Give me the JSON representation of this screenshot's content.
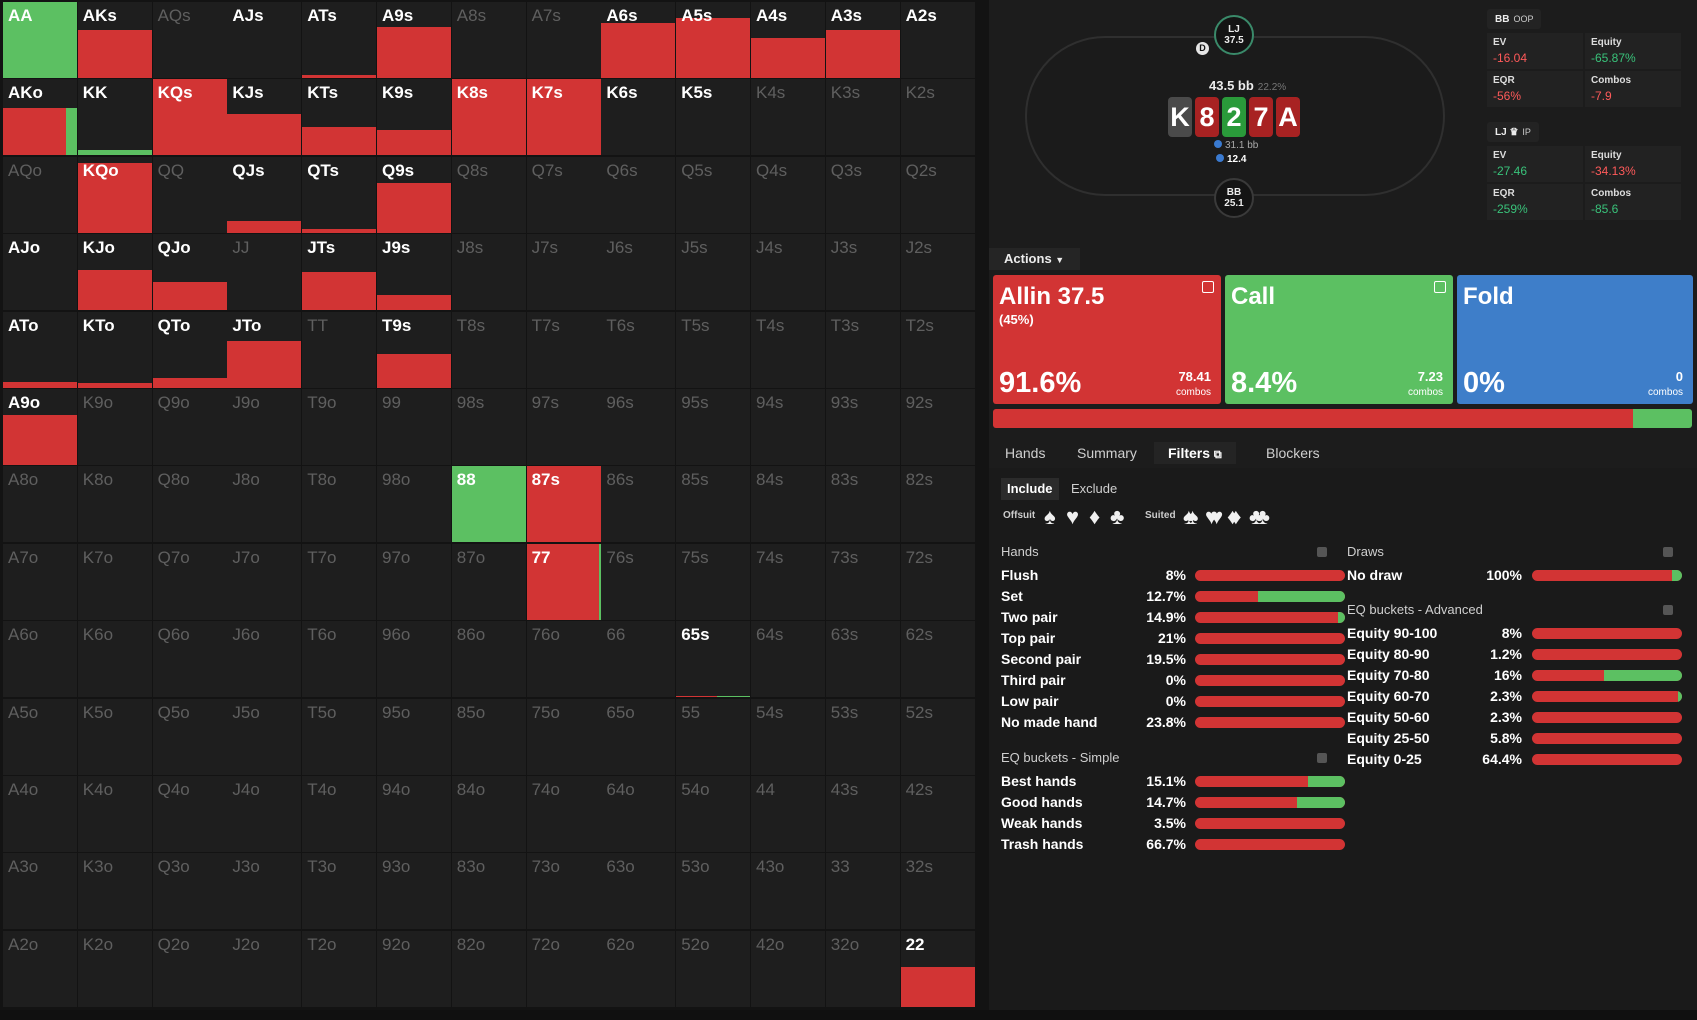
{
  "colors": {
    "allin": "#d23434",
    "call": "#5cc062",
    "fold": "#3e7ec9",
    "cell_bg": "#1e1e1e"
  },
  "grid": {
    "cells": [
      [
        {
          "label": "AA",
          "active": true,
          "allin": 0,
          "call": 1
        },
        {
          "label": "AKs",
          "active": true,
          "allin": 0.63,
          "call": 0
        },
        {
          "label": "AQs",
          "active": false
        },
        {
          "label": "AJs",
          "active": true,
          "allin": 0,
          "call": 0
        },
        {
          "label": "ATs",
          "active": true,
          "allin": 0.04,
          "call": 0
        },
        {
          "label": "A9s",
          "active": true,
          "allin": 0.67,
          "call": 0
        },
        {
          "label": "A8s",
          "active": false
        },
        {
          "label": "A7s",
          "active": false
        },
        {
          "label": "A6s",
          "active": true,
          "allin": 0.72,
          "call": 0
        },
        {
          "label": "A5s",
          "active": true,
          "allin": 0.79,
          "call": 0
        },
        {
          "label": "A4s",
          "active": true,
          "allin": 0.53,
          "call": 0
        },
        {
          "label": "A3s",
          "active": true,
          "allin": 0.63,
          "call": 0
        },
        {
          "label": "A2s",
          "active": true,
          "allin": 0,
          "call": 0
        }
      ],
      [
        {
          "label": "AKo",
          "active": true,
          "allin": 0.62,
          "call": 0.62,
          "split": 0.85
        },
        {
          "label": "KK",
          "active": true,
          "allin": 0.07,
          "call": 0.07,
          "split": 0
        },
        {
          "label": "KQs",
          "active": true,
          "allin": 1,
          "call": 0
        },
        {
          "label": "KJs",
          "active": true,
          "allin": 0.55,
          "call": 0
        },
        {
          "label": "KTs",
          "active": true,
          "allin": 0.38,
          "call": 0
        },
        {
          "label": "K9s",
          "active": true,
          "allin": 0.33,
          "call": 0
        },
        {
          "label": "K8s",
          "active": true,
          "allin": 1,
          "call": 0
        },
        {
          "label": "K7s",
          "active": true,
          "allin": 1,
          "call": 0
        },
        {
          "label": "K6s",
          "active": true,
          "allin": 0,
          "call": 0
        },
        {
          "label": "K5s",
          "active": true,
          "allin": 0,
          "call": 0
        },
        {
          "label": "K4s",
          "active": false
        },
        {
          "label": "K3s",
          "active": false
        },
        {
          "label": "K2s",
          "active": false
        }
      ],
      [
        {
          "label": "AQo",
          "active": false
        },
        {
          "label": "KQo",
          "active": true,
          "allin": 0.92,
          "call": 0
        },
        {
          "label": "QQ",
          "active": false
        },
        {
          "label": "QJs",
          "active": true,
          "allin": 0.16,
          "call": 0
        },
        {
          "label": "QTs",
          "active": true,
          "allin": 0.05,
          "call": 0
        },
        {
          "label": "Q9s",
          "active": true,
          "allin": 0.66,
          "call": 0
        },
        {
          "label": "Q8s",
          "active": false
        },
        {
          "label": "Q7s",
          "active": false
        },
        {
          "label": "Q6s",
          "active": false
        },
        {
          "label": "Q5s",
          "active": false
        },
        {
          "label": "Q4s",
          "active": false
        },
        {
          "label": "Q3s",
          "active": false
        },
        {
          "label": "Q2s",
          "active": false
        }
      ],
      [
        {
          "label": "AJo",
          "active": true,
          "allin": 0,
          "call": 0
        },
        {
          "label": "KJo",
          "active": true,
          "allin": 0.53,
          "call": 0
        },
        {
          "label": "QJo",
          "active": true,
          "allin": 0.37,
          "call": 0
        },
        {
          "label": "JJ",
          "active": false
        },
        {
          "label": "JTs",
          "active": true,
          "allin": 0.5,
          "call": 0
        },
        {
          "label": "J9s",
          "active": true,
          "allin": 0.2,
          "call": 0
        },
        {
          "label": "J8s",
          "active": false
        },
        {
          "label": "J7s",
          "active": false
        },
        {
          "label": "J6s",
          "active": false
        },
        {
          "label": "J5s",
          "active": false
        },
        {
          "label": "J4s",
          "active": false
        },
        {
          "label": "J3s",
          "active": false
        },
        {
          "label": "J2s",
          "active": false
        }
      ],
      [
        {
          "label": "ATo",
          "active": true,
          "allin": 0.08,
          "call": 0
        },
        {
          "label": "KTo",
          "active": true,
          "allin": 0.06,
          "call": 0
        },
        {
          "label": "QTo",
          "active": true,
          "allin": 0.13,
          "call": 0
        },
        {
          "label": "JTo",
          "active": true,
          "allin": 0.61,
          "call": 0
        },
        {
          "label": "TT",
          "active": false
        },
        {
          "label": "T9s",
          "active": true,
          "allin": 0.44,
          "call": 0
        },
        {
          "label": "T8s",
          "active": false
        },
        {
          "label": "T7s",
          "active": false
        },
        {
          "label": "T6s",
          "active": false
        },
        {
          "label": "T5s",
          "active": false
        },
        {
          "label": "T4s",
          "active": false
        },
        {
          "label": "T3s",
          "active": false
        },
        {
          "label": "T2s",
          "active": false
        }
      ],
      [
        {
          "label": "A9o",
          "active": true,
          "allin": 0.66,
          "call": 0
        },
        {
          "label": "K9o",
          "active": false
        },
        {
          "label": "Q9o",
          "active": false
        },
        {
          "label": "J9o",
          "active": false
        },
        {
          "label": "T9o",
          "active": false
        },
        {
          "label": "99",
          "active": false
        },
        {
          "label": "98s",
          "active": false
        },
        {
          "label": "97s",
          "active": false
        },
        {
          "label": "96s",
          "active": false
        },
        {
          "label": "95s",
          "active": false
        },
        {
          "label": "94s",
          "active": false
        },
        {
          "label": "93s",
          "active": false
        },
        {
          "label": "92s",
          "active": false
        }
      ],
      [
        {
          "label": "A8o",
          "active": false
        },
        {
          "label": "K8o",
          "active": false
        },
        {
          "label": "Q8o",
          "active": false
        },
        {
          "label": "J8o",
          "active": false
        },
        {
          "label": "T8o",
          "active": false
        },
        {
          "label": "98o",
          "active": false
        },
        {
          "label": "88",
          "active": true,
          "allin": 0,
          "call": 1
        },
        {
          "label": "87s",
          "active": true,
          "allin": 1,
          "call": 0
        },
        {
          "label": "86s",
          "active": false
        },
        {
          "label": "85s",
          "active": false
        },
        {
          "label": "84s",
          "active": false
        },
        {
          "label": "83s",
          "active": false
        },
        {
          "label": "82s",
          "active": false
        }
      ],
      [
        {
          "label": "A7o",
          "active": false
        },
        {
          "label": "K7o",
          "active": false
        },
        {
          "label": "Q7o",
          "active": false
        },
        {
          "label": "J7o",
          "active": false
        },
        {
          "label": "T7o",
          "active": false
        },
        {
          "label": "97o",
          "active": false
        },
        {
          "label": "87o",
          "active": false
        },
        {
          "label": "77",
          "active": true,
          "allin": 1,
          "call": 1,
          "split": 0.98
        },
        {
          "label": "76s",
          "active": false
        },
        {
          "label": "75s",
          "active": false
        },
        {
          "label": "74s",
          "active": false
        },
        {
          "label": "73s",
          "active": false
        },
        {
          "label": "72s",
          "active": false
        }
      ],
      [
        {
          "label": "A6o",
          "active": false
        },
        {
          "label": "K6o",
          "active": false
        },
        {
          "label": "Q6o",
          "active": false
        },
        {
          "label": "J6o",
          "active": false
        },
        {
          "label": "T6o",
          "active": false
        },
        {
          "label": "96o",
          "active": false
        },
        {
          "label": "86o",
          "active": false
        },
        {
          "label": "76o",
          "active": false
        },
        {
          "label": "66",
          "active": false
        },
        {
          "label": "65s",
          "active": true,
          "allin": 0.02,
          "call": 0.02,
          "split": 0.55
        },
        {
          "label": "64s",
          "active": false
        },
        {
          "label": "63s",
          "active": false
        },
        {
          "label": "62s",
          "active": false
        }
      ],
      [
        {
          "label": "A5o",
          "active": false
        },
        {
          "label": "K5o",
          "active": false
        },
        {
          "label": "Q5o",
          "active": false
        },
        {
          "label": "J5o",
          "active": false
        },
        {
          "label": "T5o",
          "active": false
        },
        {
          "label": "95o",
          "active": false
        },
        {
          "label": "85o",
          "active": false
        },
        {
          "label": "75o",
          "active": false
        },
        {
          "label": "65o",
          "active": false
        },
        {
          "label": "55",
          "active": false
        },
        {
          "label": "54s",
          "active": false
        },
        {
          "label": "53s",
          "active": false
        },
        {
          "label": "52s",
          "active": false
        }
      ],
      [
        {
          "label": "A4o",
          "active": false
        },
        {
          "label": "K4o",
          "active": false
        },
        {
          "label": "Q4o",
          "active": false
        },
        {
          "label": "J4o",
          "active": false
        },
        {
          "label": "T4o",
          "active": false
        },
        {
          "label": "94o",
          "active": false
        },
        {
          "label": "84o",
          "active": false
        },
        {
          "label": "74o",
          "active": false
        },
        {
          "label": "64o",
          "active": false
        },
        {
          "label": "54o",
          "active": false
        },
        {
          "label": "44",
          "active": false
        },
        {
          "label": "43s",
          "active": false
        },
        {
          "label": "42s",
          "active": false
        }
      ],
      [
        {
          "label": "A3o",
          "active": false
        },
        {
          "label": "K3o",
          "active": false
        },
        {
          "label": "Q3o",
          "active": false
        },
        {
          "label": "J3o",
          "active": false
        },
        {
          "label": "T3o",
          "active": false
        },
        {
          "label": "93o",
          "active": false
        },
        {
          "label": "83o",
          "active": false
        },
        {
          "label": "73o",
          "active": false
        },
        {
          "label": "63o",
          "active": false
        },
        {
          "label": "53o",
          "active": false
        },
        {
          "label": "43o",
          "active": false
        },
        {
          "label": "33",
          "active": false
        },
        {
          "label": "32s",
          "active": false
        }
      ],
      [
        {
          "label": "A2o",
          "active": false
        },
        {
          "label": "K2o",
          "active": false
        },
        {
          "label": "Q2o",
          "active": false
        },
        {
          "label": "J2o",
          "active": false
        },
        {
          "label": "T2o",
          "active": false
        },
        {
          "label": "92o",
          "active": false
        },
        {
          "label": "82o",
          "active": false
        },
        {
          "label": "72o",
          "active": false
        },
        {
          "label": "62o",
          "active": false
        },
        {
          "label": "52o",
          "active": false
        },
        {
          "label": "42o",
          "active": false
        },
        {
          "label": "32o",
          "active": false
        },
        {
          "label": "22",
          "active": true,
          "allin": 0.52,
          "call": 0
        }
      ]
    ]
  },
  "table": {
    "lj_seat": {
      "name": "LJ",
      "stack": "37.5"
    },
    "bb_seat": {
      "name": "BB",
      "stack": "25.1"
    },
    "dealer": "D",
    "pot": "43.5 bb",
    "pot_pct": "22.2%",
    "board": [
      {
        "rank": "K",
        "color": "#4a4a4a"
      },
      {
        "rank": "8",
        "color": "#a82222"
      },
      {
        "rank": "2",
        "color": "#2a9a3a"
      },
      {
        "rank": "7",
        "color": "#a82222"
      },
      {
        "rank": "A",
        "color": "#a82222"
      }
    ],
    "chips_top": "31.1 bb",
    "chips_bottom": "12.4"
  },
  "stats": {
    "bb": {
      "pos": "BB",
      "role": "OOP",
      "ev_label": "EV",
      "ev": "-16.04",
      "equity_label": "Equity",
      "equity": "-65.87%",
      "eqr_label": "EQR",
      "eqr": "-56%",
      "combos_label": "Combos",
      "combos": "-7.9"
    },
    "lj": {
      "pos": "LJ ♛",
      "role": "IP",
      "ev_label": "EV",
      "ev": "-27.46",
      "equity_label": "Equity",
      "equity": "-34.13%",
      "eqr_label": "EQR",
      "eqr": "-259%",
      "combos_label": "Combos",
      "combos": "-85.6"
    }
  },
  "actions": {
    "dropdown_label": "Actions",
    "cards": [
      {
        "name": "Allin 37.5",
        "sub": "(45%)",
        "pct": "91.6%",
        "combos": "78.41",
        "combos_label": "combos",
        "color": "#d23434"
      },
      {
        "name": "Call",
        "sub": "",
        "pct": "8.4%",
        "combos": "7.23",
        "combos_label": "combos",
        "color": "#5cc062"
      },
      {
        "name": "Fold",
        "sub": "",
        "pct": "0%",
        "combos": "0",
        "combos_label": "combos",
        "color": "#3e7ec9"
      }
    ],
    "freq": {
      "allin": 0.916,
      "call": 0.084,
      "fold": 0
    }
  },
  "tabs": [
    "Hands",
    "Summary",
    "Filters",
    "Blockers"
  ],
  "filters": {
    "include_label": "Include",
    "exclude_label": "Exclude",
    "offsuit_label": "Offsuit",
    "suited_label": "Suited",
    "hands_title": "Hands",
    "hands": [
      {
        "name": "Flush",
        "pct": "8%",
        "green": 0
      },
      {
        "name": "Set",
        "pct": "12.7%",
        "green": 0.58
      },
      {
        "name": "Two pair",
        "pct": "14.9%",
        "green": 0.05
      },
      {
        "name": "Top pair",
        "pct": "21%",
        "green": 0
      },
      {
        "name": "Second pair",
        "pct": "19.5%",
        "green": 0
      },
      {
        "name": "Third pair",
        "pct": "0%",
        "green": 0
      },
      {
        "name": "Low pair",
        "pct": "0%",
        "green": 0
      },
      {
        "name": "No made hand",
        "pct": "23.8%",
        "green": 0
      }
    ],
    "eq_simple_title": "EQ buckets - Simple",
    "eq_simple": [
      {
        "name": "Best hands",
        "pct": "15.1%",
        "green": 0.25
      },
      {
        "name": "Good hands",
        "pct": "14.7%",
        "green": 0.32
      },
      {
        "name": "Weak hands",
        "pct": "3.5%",
        "green": 0
      },
      {
        "name": "Trash hands",
        "pct": "66.7%",
        "green": 0
      }
    ],
    "draws_title": "Draws",
    "draws": [
      {
        "name": "No draw",
        "pct": "100%",
        "green": 0.07
      }
    ],
    "eq_adv_title": "EQ buckets - Advanced",
    "eq_adv": [
      {
        "name": "Equity 90-100",
        "pct": "8%",
        "green": 0
      },
      {
        "name": "Equity 80-90",
        "pct": "1.2%",
        "green": 0
      },
      {
        "name": "Equity 70-80",
        "pct": "16%",
        "green": 0.52
      },
      {
        "name": "Equity 60-70",
        "pct": "2.3%",
        "green": 0.03
      },
      {
        "name": "Equity 50-60",
        "pct": "2.3%",
        "green": 0
      },
      {
        "name": "Equity 25-50",
        "pct": "5.8%",
        "green": 0
      },
      {
        "name": "Equity 0-25",
        "pct": "64.4%",
        "green": 0
      }
    ]
  }
}
